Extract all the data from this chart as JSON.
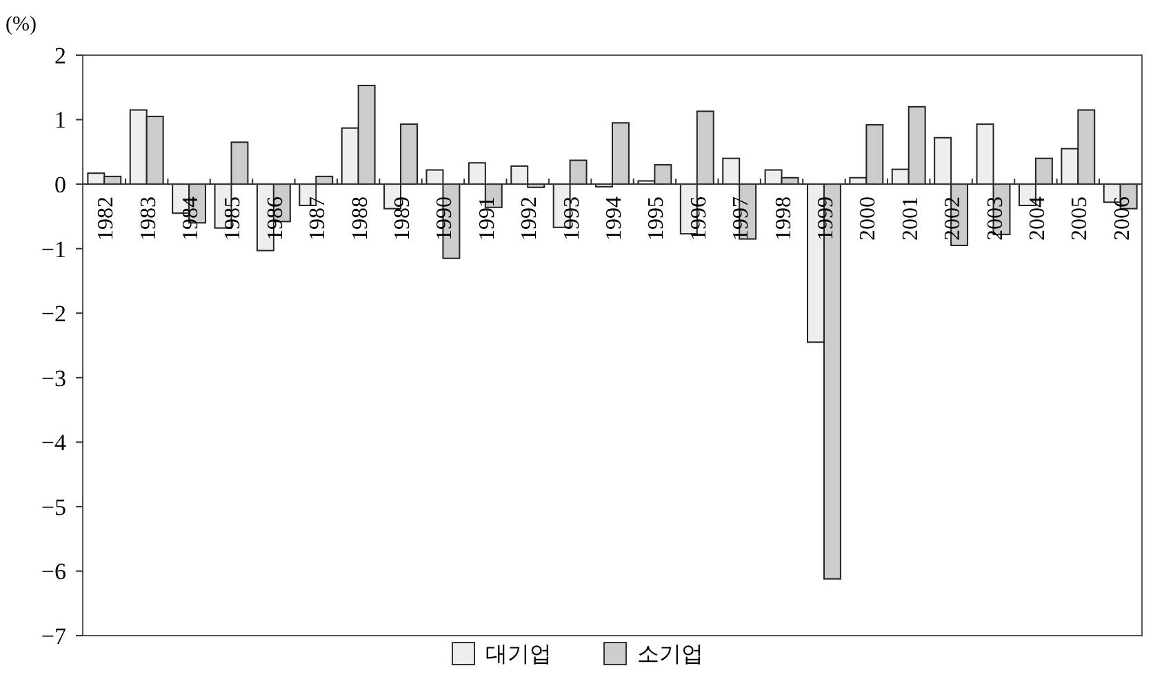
{
  "chart_data": {
    "type": "bar",
    "ylabel": "(%)",
    "categories": [
      "1982",
      "1983",
      "1984",
      "1985",
      "1986",
      "1987",
      "1988",
      "1989",
      "1990",
      "1991",
      "1992",
      "1993",
      "1994",
      "1995",
      "1996",
      "1997",
      "1998",
      "1999",
      "2000",
      "2001",
      "2002",
      "2003",
      "2004",
      "2005",
      "2006"
    ],
    "series": [
      {
        "name": "대기업",
        "color": "#eeeeee",
        "values": [
          0.17,
          1.15,
          -0.45,
          -0.68,
          -1.03,
          -0.33,
          0.87,
          -0.38,
          0.22,
          0.33,
          0.28,
          -0.67,
          -0.04,
          0.05,
          -0.77,
          0.4,
          0.22,
          -2.45,
          0.1,
          0.23,
          0.72,
          0.93,
          -0.33,
          0.55,
          -0.28
        ]
      },
      {
        "name": "소기업",
        "color": "#cccccc",
        "values": [
          0.12,
          1.05,
          -0.6,
          0.65,
          -0.58,
          0.12,
          1.53,
          0.93,
          -1.15,
          -0.36,
          -0.05,
          0.37,
          0.95,
          0.3,
          1.13,
          -0.85,
          0.1,
          -6.12,
          0.92,
          1.2,
          -0.95,
          -0.78,
          0.4,
          1.15,
          -0.38
        ]
      }
    ],
    "ylim": [
      -7,
      2
    ],
    "yticks": [
      {
        "value": -7,
        "label": "−7"
      },
      {
        "value": -6,
        "label": "−6"
      },
      {
        "value": -5,
        "label": "−5"
      },
      {
        "value": -4,
        "label": "−4"
      },
      {
        "value": -3,
        "label": "−3"
      },
      {
        "value": -2,
        "label": "−2"
      },
      {
        "value": -1,
        "label": "−1"
      },
      0,
      1,
      2
    ],
    "grid": false,
    "legend": "bottom"
  }
}
